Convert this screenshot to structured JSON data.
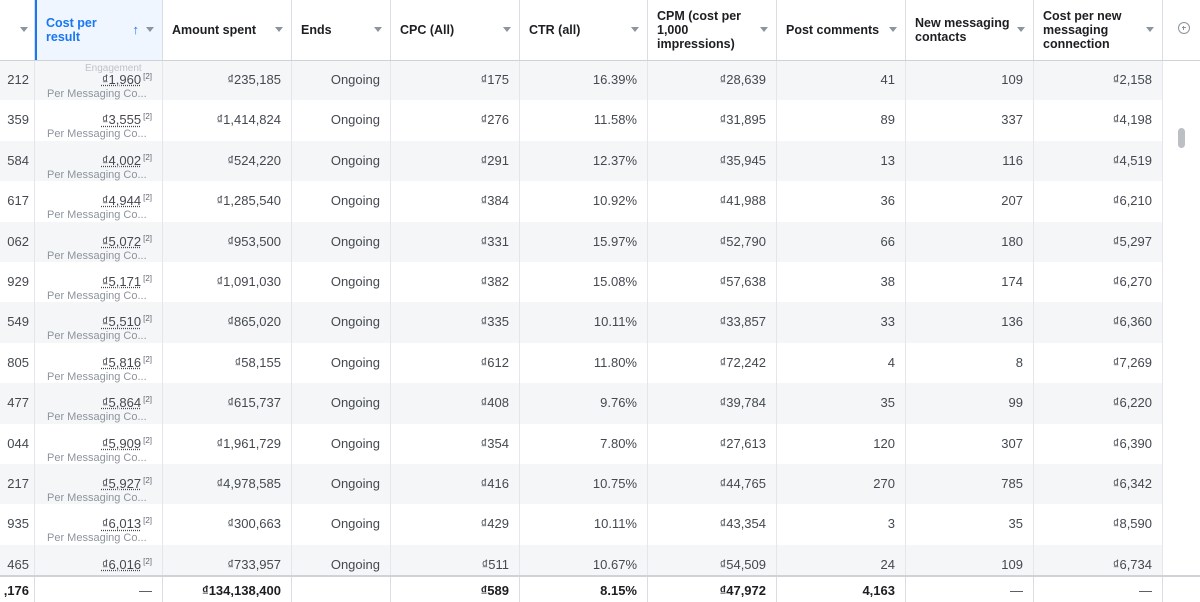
{
  "columns": [
    {
      "label": ""
    },
    {
      "label": "Cost per result"
    },
    {
      "label": "Amount spent"
    },
    {
      "label": "Ends"
    },
    {
      "label": "CPC (All)"
    },
    {
      "label": "CTR (all)"
    },
    {
      "label": "CPM (cost per 1,000 impressions)"
    },
    {
      "label": "Post comments"
    },
    {
      "label": "New messaging contacts"
    },
    {
      "label": "Cost per new messaging connection"
    }
  ],
  "sort_indicator": "↑",
  "clipped_subtitle": "Per Post Engagement",
  "badge": "[2]",
  "rows": [
    {
      "c0": "212",
      "cpr": "₫1,960",
      "sub": "Per Messaging Co...",
      "amount": "₫235,185",
      "ends": "Ongoing",
      "cpc": "₫175",
      "ctr": "16.39%",
      "cpm": "₫28,639",
      "comments": "41",
      "contacts": "109",
      "cost_conn": "₫2,158"
    },
    {
      "c0": "359",
      "cpr": "₫3,555",
      "sub": "Per Messaging Co...",
      "amount": "₫1,414,824",
      "ends": "Ongoing",
      "cpc": "₫276",
      "ctr": "11.58%",
      "cpm": "₫31,895",
      "comments": "89",
      "contacts": "337",
      "cost_conn": "₫4,198"
    },
    {
      "c0": "584",
      "cpr": "₫4,002",
      "sub": "Per Messaging Co...",
      "amount": "₫524,220",
      "ends": "Ongoing",
      "cpc": "₫291",
      "ctr": "12.37%",
      "cpm": "₫35,945",
      "comments": "13",
      "contacts": "116",
      "cost_conn": "₫4,519"
    },
    {
      "c0": "617",
      "cpr": "₫4,944",
      "sub": "Per Messaging Co...",
      "amount": "₫1,285,540",
      "ends": "Ongoing",
      "cpc": "₫384",
      "ctr": "10.92%",
      "cpm": "₫41,988",
      "comments": "36",
      "contacts": "207",
      "cost_conn": "₫6,210"
    },
    {
      "c0": "062",
      "cpr": "₫5,072",
      "sub": "Per Messaging Co...",
      "amount": "₫953,500",
      "ends": "Ongoing",
      "cpc": "₫331",
      "ctr": "15.97%",
      "cpm": "₫52,790",
      "comments": "66",
      "contacts": "180",
      "cost_conn": "₫5,297"
    },
    {
      "c0": "929",
      "cpr": "₫5,171",
      "sub": "Per Messaging Co...",
      "amount": "₫1,091,030",
      "ends": "Ongoing",
      "cpc": "₫382",
      "ctr": "15.08%",
      "cpm": "₫57,638",
      "comments": "38",
      "contacts": "174",
      "cost_conn": "₫6,270"
    },
    {
      "c0": "549",
      "cpr": "₫5,510",
      "sub": "Per Messaging Co...",
      "amount": "₫865,020",
      "ends": "Ongoing",
      "cpc": "₫335",
      "ctr": "10.11%",
      "cpm": "₫33,857",
      "comments": "33",
      "contacts": "136",
      "cost_conn": "₫6,360"
    },
    {
      "c0": "805",
      "cpr": "₫5,816",
      "sub": "Per Messaging Co...",
      "amount": "₫58,155",
      "ends": "Ongoing",
      "cpc": "₫612",
      "ctr": "11.80%",
      "cpm": "₫72,242",
      "comments": "4",
      "contacts": "8",
      "cost_conn": "₫7,269"
    },
    {
      "c0": "477",
      "cpr": "₫5,864",
      "sub": "Per Messaging Co...",
      "amount": "₫615,737",
      "ends": "Ongoing",
      "cpc": "₫408",
      "ctr": "9.76%",
      "cpm": "₫39,784",
      "comments": "35",
      "contacts": "99",
      "cost_conn": "₫6,220"
    },
    {
      "c0": "044",
      "cpr": "₫5,909",
      "sub": "Per Messaging Co...",
      "amount": "₫1,961,729",
      "ends": "Ongoing",
      "cpc": "₫354",
      "ctr": "7.80%",
      "cpm": "₫27,613",
      "comments": "120",
      "contacts": "307",
      "cost_conn": "₫6,390"
    },
    {
      "c0": "217",
      "cpr": "₫5,927",
      "sub": "Per Messaging Co...",
      "amount": "₫4,978,585",
      "ends": "Ongoing",
      "cpc": "₫416",
      "ctr": "10.75%",
      "cpm": "₫44,765",
      "comments": "270",
      "contacts": "785",
      "cost_conn": "₫6,342"
    },
    {
      "c0": "935",
      "cpr": "₫6,013",
      "sub": "Per Messaging Co...",
      "amount": "₫300,663",
      "ends": "Ongoing",
      "cpc": "₫429",
      "ctr": "10.11%",
      "cpm": "₫43,354",
      "comments": "3",
      "contacts": "35",
      "cost_conn": "₫8,590"
    },
    {
      "c0": "465",
      "cpr": "₫6,016",
      "sub": "",
      "amount": "₫733,957",
      "ends": "Ongoing",
      "cpc": "₫511",
      "ctr": "10.67%",
      "cpm": "₫54,509",
      "comments": "24",
      "contacts": "109",
      "cost_conn": "₫6,734"
    }
  ],
  "totals": {
    "c0": ",176",
    "cpr": "—",
    "amount": "₫134,138,400",
    "ends": "",
    "cpc": "₫589",
    "ctr": "8.15%",
    "cpm": "₫47,972",
    "comments": "4,163",
    "contacts": "—",
    "cost_conn": "—"
  }
}
